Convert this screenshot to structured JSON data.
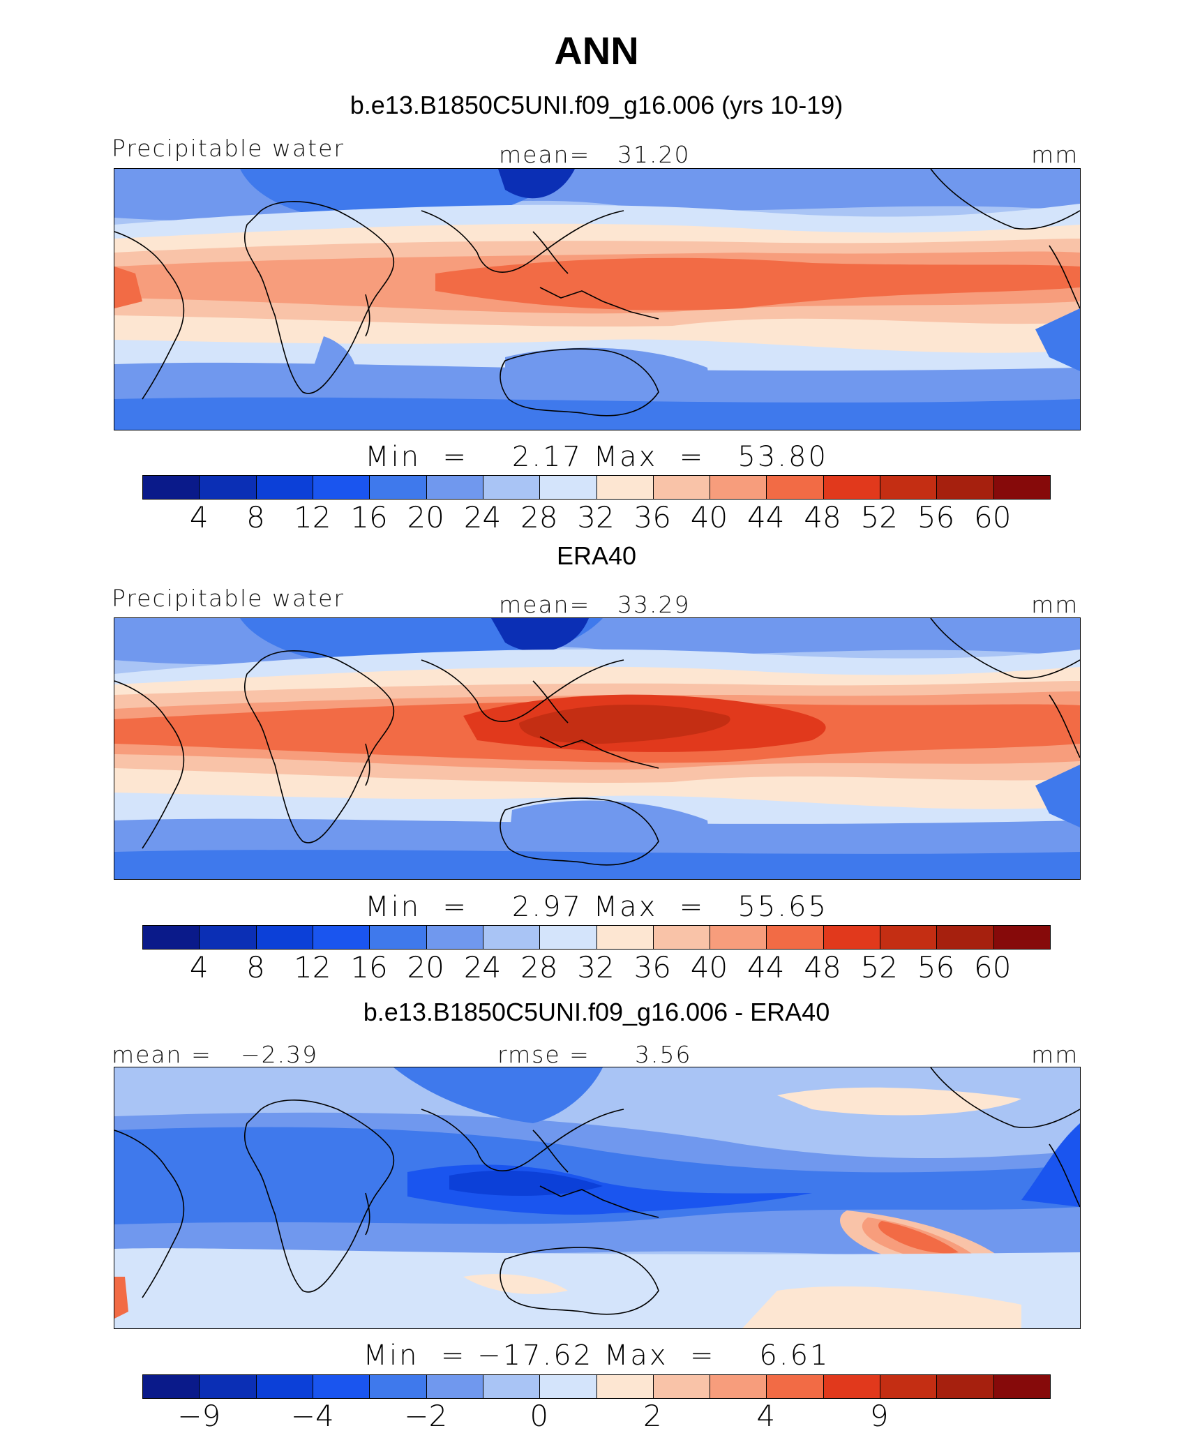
{
  "figure": {
    "season": "ANN"
  },
  "colors": {
    "fill_scale": [
      "#0a1a8a",
      "#0b2fb5",
      "#0c40d8",
      "#1a55ef",
      "#3f79ec",
      "#7098ee",
      "#a9c4f5",
      "#d4e4fb",
      "#fde6d2",
      "#f9c3a8",
      "#f79d7c",
      "#f26b45",
      "#e1391c",
      "#c42e13",
      "#a6200e",
      "#860a0a"
    ]
  },
  "chart_data": [
    {
      "type": "heatmap",
      "panel": "model",
      "title": "b.e13.B1850C5UNI.f09_g16.006 (yrs 10-19)",
      "variable": "Precipitable water",
      "units": "mm",
      "mean_label": "mean=",
      "mean_value": "31.20",
      "min_label": "Min  =",
      "min_value": "2.17",
      "max_label": "Max  =",
      "max_value": "53.80",
      "colorbar_ticks": [
        "4",
        "8",
        "12",
        "16",
        "20",
        "24",
        "28",
        "32",
        "36",
        "40",
        "44",
        "48",
        "52",
        "56",
        "60"
      ],
      "colorbar_levels": [
        4,
        8,
        12,
        16,
        20,
        24,
        28,
        32,
        36,
        40,
        44,
        48,
        52,
        56,
        60
      ],
      "longitude_range": [
        -90,
        270
      ],
      "latitude_range": [
        -45,
        45
      ]
    },
    {
      "type": "heatmap",
      "panel": "observations",
      "title": "ERA40",
      "variable": "Precipitable water",
      "units": "mm",
      "mean_label": "mean=",
      "mean_value": "33.29",
      "min_label": "Min  =",
      "min_value": "2.97",
      "max_label": "Max  =",
      "max_value": "55.65",
      "colorbar_ticks": [
        "4",
        "8",
        "12",
        "16",
        "20",
        "24",
        "28",
        "32",
        "36",
        "40",
        "44",
        "48",
        "52",
        "56",
        "60"
      ],
      "colorbar_levels": [
        4,
        8,
        12,
        16,
        20,
        24,
        28,
        32,
        36,
        40,
        44,
        48,
        52,
        56,
        60
      ],
      "longitude_range": [
        -90,
        270
      ],
      "latitude_range": [
        -45,
        45
      ]
    },
    {
      "type": "heatmap",
      "panel": "difference",
      "title": "b.e13.B1850C5UNI.f09_g16.006 - ERA40",
      "units": "mm",
      "mean_label": "mean =",
      "mean_value": "−2.39",
      "rmse_label": "rmse =",
      "rmse_value": "3.56",
      "min_label": "Min  =",
      "min_value": "−17.62",
      "max_label": "Max  =",
      "max_value": "6.61",
      "colorbar_ticks": [
        "−9",
        "−4",
        "−2",
        "0",
        "2",
        "4",
        "9"
      ],
      "colorbar_tick_boundaries": [
        1,
        3,
        5,
        7,
        9,
        11,
        13
      ],
      "longitude_range": [
        -90,
        270
      ],
      "latitude_range": [
        -45,
        45
      ]
    }
  ]
}
